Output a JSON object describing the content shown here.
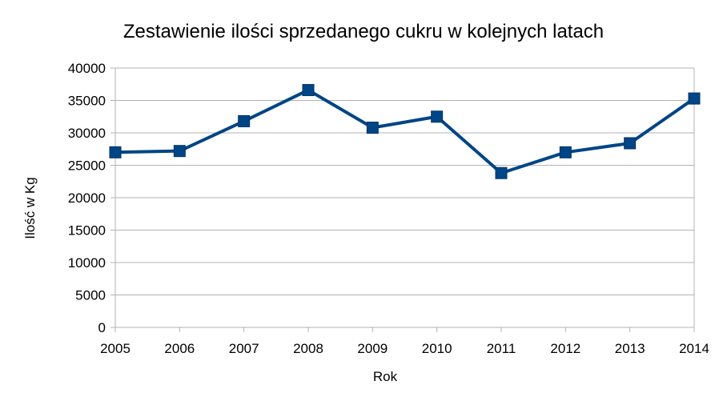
{
  "chart_data": {
    "type": "line",
    "title": "Zestawienie ilości sprzedanego cukru w kolejnych latach",
    "xlabel": "Rok",
    "ylabel": "Ilość w Kg",
    "categories": [
      "2005",
      "2006",
      "2007",
      "2008",
      "2009",
      "2010",
      "2011",
      "2012",
      "2013",
      "2014"
    ],
    "series": [
      {
        "values": [
          27000,
          27200,
          31800,
          36600,
          30800,
          32500,
          23800,
          27000,
          28400,
          35300
        ],
        "color": "#004586",
        "marker": "square"
      }
    ],
    "ylim": [
      0,
      40000
    ],
    "yticks": [
      0,
      5000,
      10000,
      15000,
      20000,
      25000,
      30000,
      35000,
      40000
    ],
    "grid": "horizontal",
    "legend": "none"
  }
}
